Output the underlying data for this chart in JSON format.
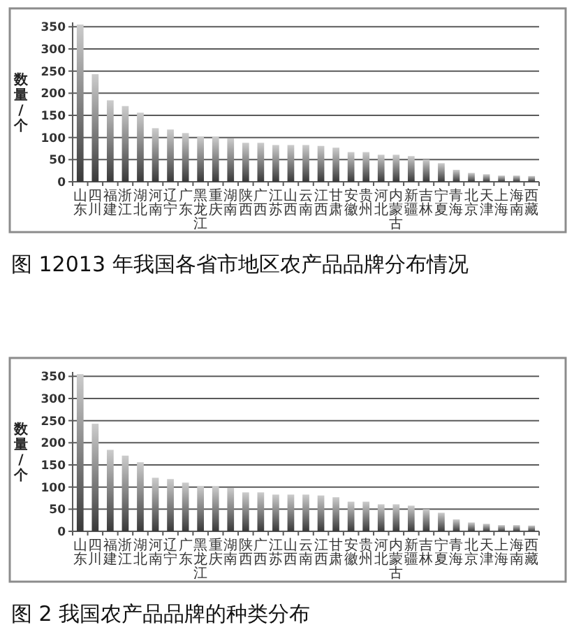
{
  "chart_data": [
    {
      "type": "bar",
      "categories": [
        "山东",
        "四川",
        "福建",
        "浙江",
        "湖北",
        "河南",
        "辽宁",
        "广东",
        "黑龙江",
        "重庆",
        "湖南",
        "陕西",
        "广西",
        "江苏",
        "山西",
        "云南",
        "江西",
        "甘肃",
        "安徽",
        "贵州",
        "河北",
        "内蒙古",
        "新疆",
        "吉林",
        "宁夏",
        "青海",
        "北京",
        "天津",
        "上海",
        "海南",
        "西藏"
      ],
      "values": [
        355,
        243,
        184,
        171,
        156,
        121,
        118,
        110,
        102,
        101,
        98,
        88,
        88,
        83,
        83,
        83,
        81,
        77,
        67,
        67,
        61,
        61,
        58,
        50,
        42,
        27,
        20,
        17,
        14,
        14,
        13
      ],
      "color": "#7f7f7f",
      "ylim": [
        0,
        360
      ],
      "yticks": [
        0,
        50,
        100,
        150,
        200,
        250,
        300,
        350
      ],
      "ylabel": "数量/个",
      "grid": "y",
      "annotations": [
        "图 12013 年我国各省市地区农产品品牌分布情况"
      ]
    },
    {
      "type": "bar",
      "categories": [
        "山东",
        "四川",
        "福建",
        "浙江",
        "湖北",
        "河南",
        "辽宁",
        "广东",
        "黑龙江",
        "重庆",
        "湖南",
        "陕西",
        "广西",
        "江苏",
        "山西",
        "云南",
        "江西",
        "甘肃",
        "安徽",
        "贵州",
        "河北",
        "内蒙古",
        "新疆",
        "吉林",
        "宁夏",
        "青海",
        "北京",
        "天津",
        "上海",
        "海南",
        "西藏"
      ],
      "values": [
        355,
        243,
        184,
        171,
        156,
        121,
        118,
        110,
        102,
        101,
        98,
        88,
        88,
        83,
        83,
        83,
        81,
        77,
        67,
        67,
        61,
        61,
        58,
        50,
        42,
        27,
        20,
        17,
        14,
        14,
        13
      ],
      "color": "#7f7f7f",
      "ylim": [
        0,
        360
      ],
      "yticks": [
        0,
        50,
        100,
        150,
        200,
        250,
        300,
        350
      ],
      "ylabel": "数量/个",
      "grid": "y",
      "annotations": [
        "图 2 我国农产品品牌的种类分布"
      ]
    }
  ]
}
